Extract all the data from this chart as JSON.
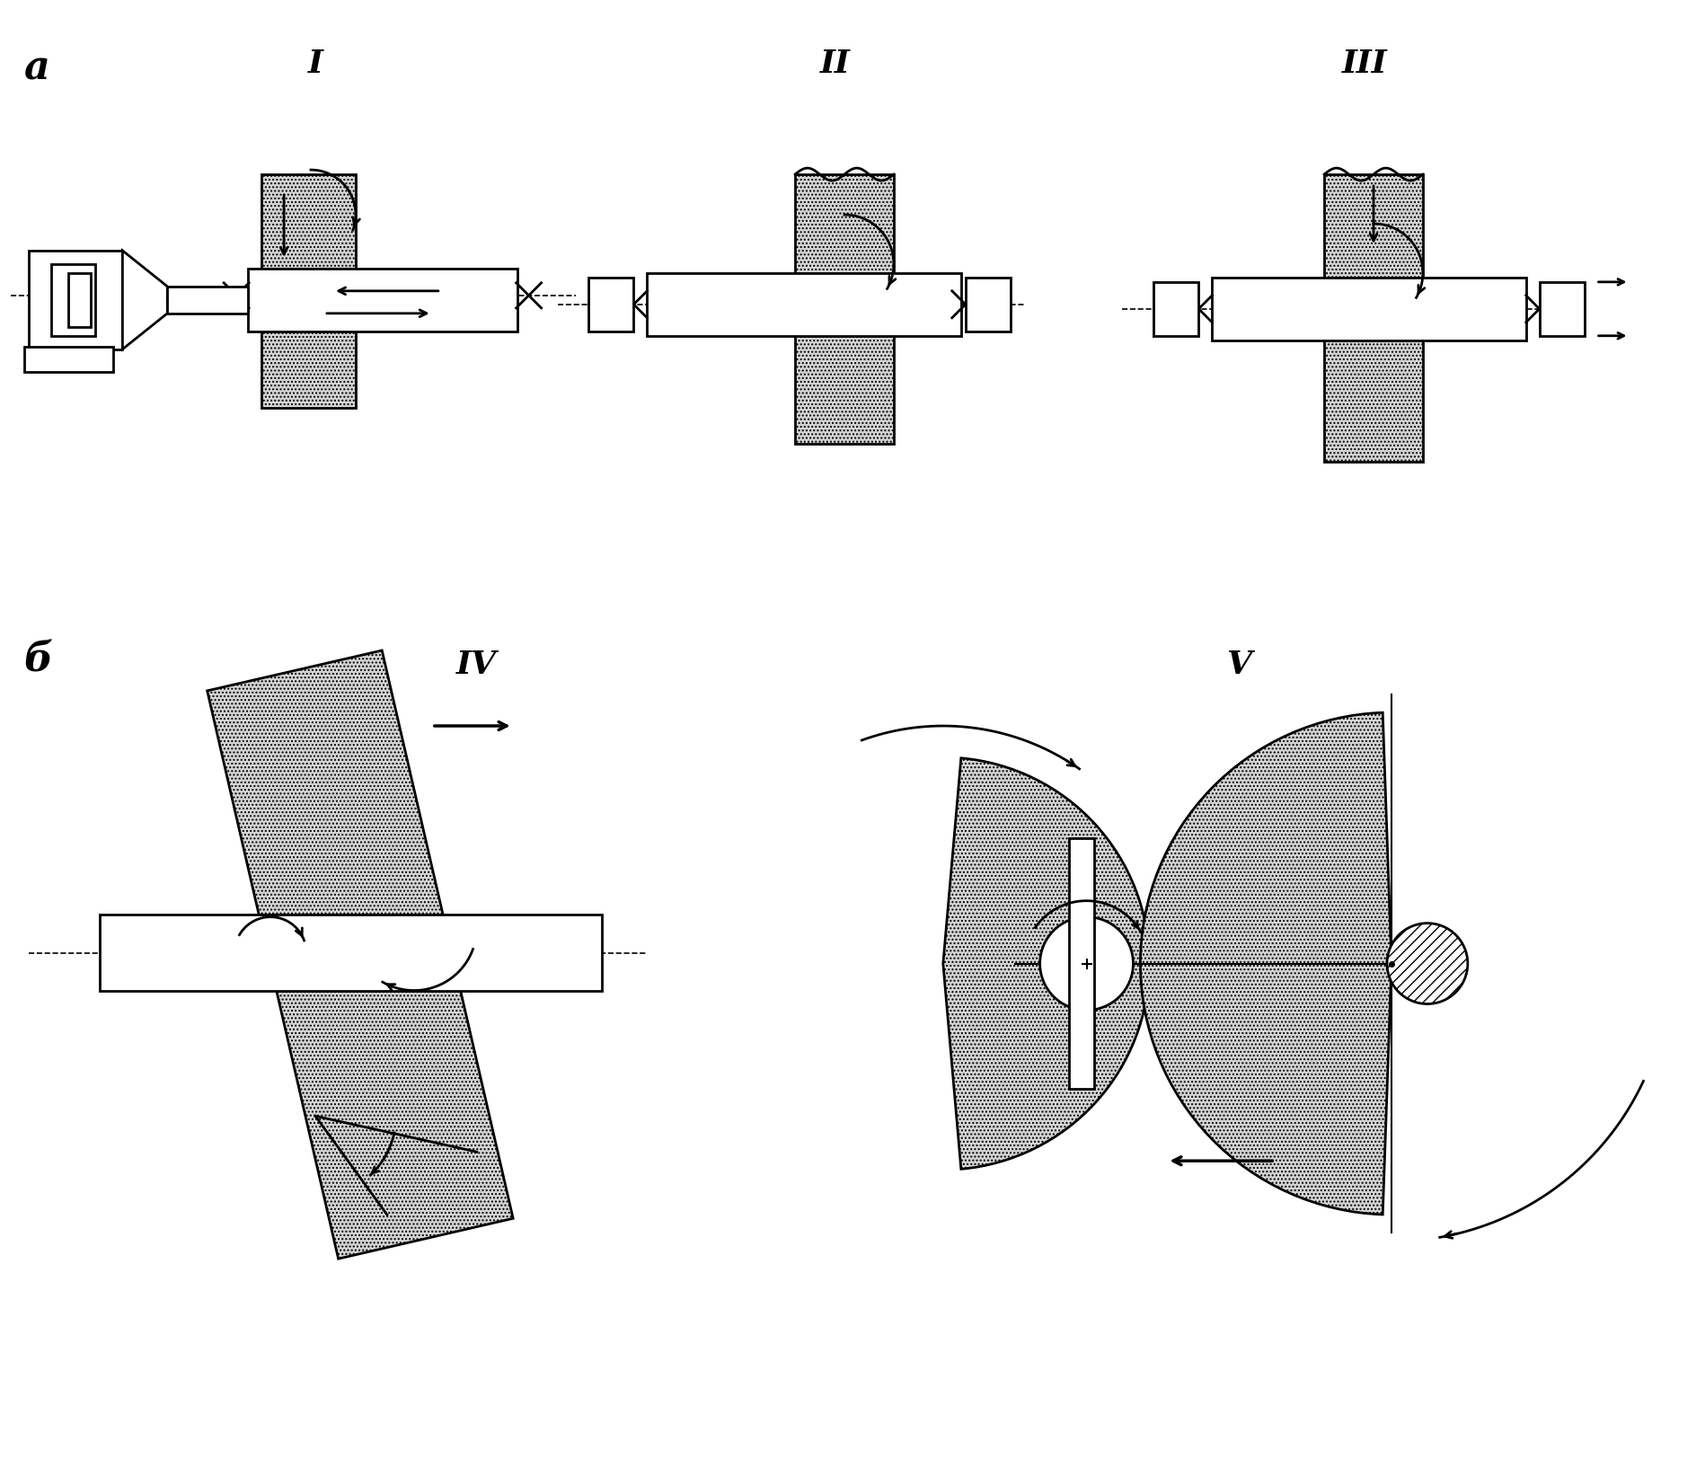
{
  "bg_color": "#ffffff",
  "line_color": "#000000",
  "label_a": "a",
  "label_b": "б",
  "label_I": "I",
  "label_II": "II",
  "label_III": "III",
  "label_IV": "IV",
  "label_V": "V",
  "hatch_dots": "....",
  "fill_dots": "#d4d4d4",
  "fill_white": "#ffffff"
}
